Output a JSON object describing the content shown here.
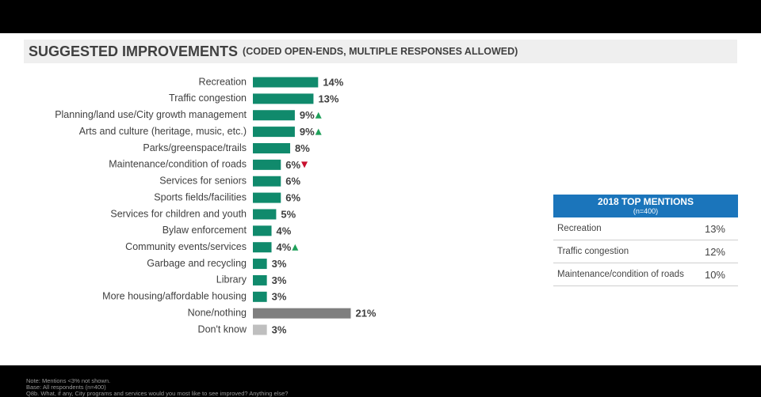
{
  "chart_data": {
    "type": "bar",
    "title": "SUGGESTED IMPROVEMENTS",
    "subtitle": "(CODED OPEN-ENDS, MULTIPLE RESPONSES ALLOWED)",
    "categories": [
      "Recreation",
      "Traffic congestion",
      "Planning/land use/City growth management",
      "Arts and culture (heritage, music, etc.)",
      "Parks/greenspace/trails",
      "Maintenance/condition of roads",
      "Services for seniors",
      "Sports fields/facilities",
      "Services for children and youth",
      "Bylaw enforcement",
      "Community events/services",
      "Garbage and recycling",
      "Library",
      "More housing/affordable housing",
      "None/nothing",
      "Don't know"
    ],
    "values": [
      14,
      13,
      9,
      9,
      8,
      6,
      6,
      6,
      5,
      4,
      4,
      3,
      3,
      3,
      21,
      3
    ],
    "value_labels": [
      "14%",
      "13%",
      "9%",
      "9%",
      "8%",
      "6%",
      "6%",
      "6%",
      "5%",
      "4%",
      "4%",
      "3%",
      "3%",
      "3%",
      "21%",
      "3%"
    ],
    "colors": [
      "#108a6c",
      "#108a6c",
      "#108a6c",
      "#108a6c",
      "#108a6c",
      "#108a6c",
      "#108a6c",
      "#108a6c",
      "#108a6c",
      "#108a6c",
      "#108a6c",
      "#108a6c",
      "#108a6c",
      "#108a6c",
      "#7f7f7f",
      "#bfbfbf"
    ],
    "changes": [
      null,
      null,
      "up",
      "up",
      null,
      "down",
      null,
      null,
      null,
      null,
      "up",
      null,
      null,
      null,
      null,
      null
    ]
  },
  "table": {
    "title": "2018 TOP MENTIONS",
    "subtitle": "(n=400)",
    "rows": [
      [
        "Recreation",
        "13%"
      ],
      [
        "Traffic congestion",
        "12%"
      ],
      [
        "Maintenance/condition of roads",
        "10%"
      ]
    ]
  },
  "notes": [
    "Note: Mentions <3% not shown.",
    "Base: All respondents (n=400)",
    "Q8b. What, if any, City programs and services would you most like to see improved? Anything else?"
  ]
}
